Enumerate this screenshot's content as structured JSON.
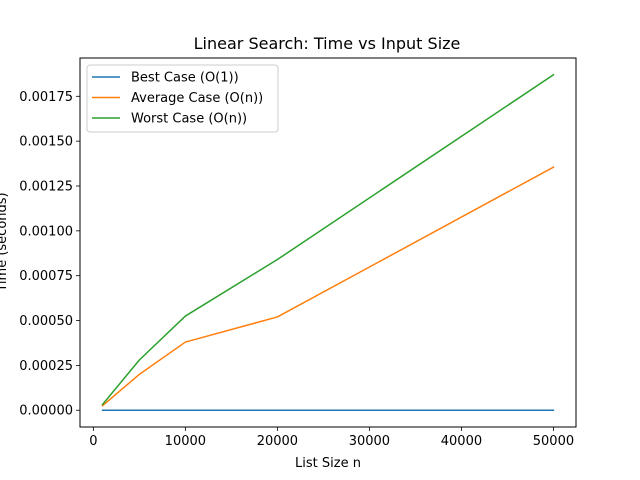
{
  "chart_data": {
    "type": "line",
    "title": "Linear Search: Time vs Input Size",
    "xlabel": "List Size n",
    "ylabel": "Time (seconds)",
    "xlim": [
      -1450,
      52450
    ],
    "ylim": [
      -9.35e-05,
      0.0019635
    ],
    "xticks": [
      0,
      10000,
      20000,
      30000,
      40000,
      50000
    ],
    "yticks": [
      0.0,
      0.00025,
      0.0005,
      0.00075,
      0.001,
      0.00125,
      0.0015,
      0.00175
    ],
    "xtick_labels": [
      "0",
      "10000",
      "20000",
      "30000",
      "40000",
      "50000"
    ],
    "ytick_labels": [
      "0.00000",
      "0.00025",
      "0.00050",
      "0.00075",
      "0.00100",
      "0.00125",
      "0.00150",
      "0.00175"
    ],
    "grid": false,
    "legend_position": "upper-left",
    "series": [
      {
        "name": "Best Case (O(1))",
        "color": "#1f77b4",
        "x": [
          1000,
          5000,
          10000,
          20000,
          50000
        ],
        "y": [
          1e-07,
          1e-07,
          1e-07,
          1e-07,
          1e-07
        ]
      },
      {
        "name": "Average Case (O(n))",
        "color": "#ff7f0e",
        "x": [
          1000,
          5000,
          10000,
          20000,
          50000
        ],
        "y": [
          2.5e-05,
          0.0002,
          0.00038,
          0.00052,
          0.001355
        ]
      },
      {
        "name": "Worst Case (O(n))",
        "color": "#2ca02c",
        "x": [
          1000,
          5000,
          10000,
          20000,
          50000
        ],
        "y": [
          3.2e-05,
          0.00028,
          0.000525,
          0.00084,
          0.00187
        ]
      }
    ]
  }
}
